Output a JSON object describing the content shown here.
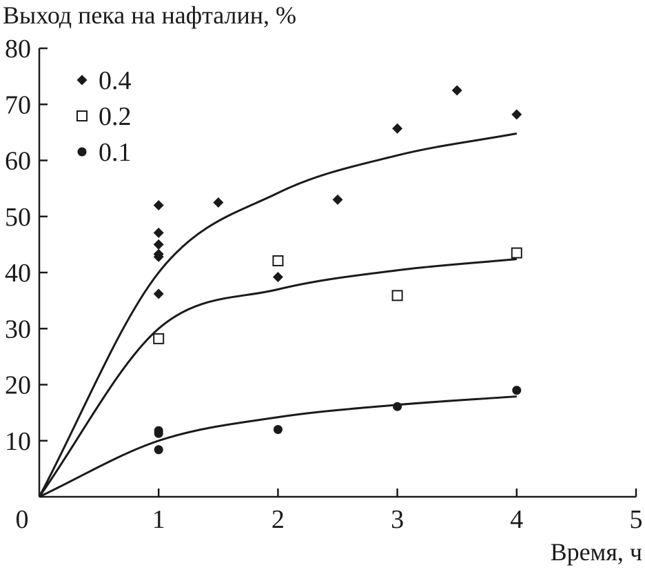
{
  "chart_data": {
    "type": "scatter",
    "ylabel": "Выход пека на нафталин, %",
    "xlabel": "Время, ч",
    "xlim": [
      0,
      5
    ],
    "ylim": [
      0,
      80
    ],
    "x_ticks": [
      "0",
      "1",
      "2",
      "3",
      "4",
      "5"
    ],
    "y_ticks": [
      "10",
      "20",
      "30",
      "40",
      "50",
      "60",
      "70",
      "80"
    ],
    "grid": false,
    "legend_position": "top-left",
    "colors": {
      "ink": "#1a1a1a",
      "background": "#ffffff"
    },
    "series": [
      {
        "name": "0.4",
        "marker": "filled-diamond",
        "points": [
          [
            1,
            52
          ],
          [
            1,
            47.1
          ],
          [
            1,
            45
          ],
          [
            1,
            43.3
          ],
          [
            1,
            42.8
          ],
          [
            1,
            36.2
          ],
          [
            1.5,
            52.5
          ],
          [
            2,
            39.2
          ],
          [
            2.5,
            53
          ],
          [
            3,
            65.7
          ],
          [
            3.5,
            72.5
          ],
          [
            4,
            68.2
          ]
        ],
        "fit_curve": {
          "x": [
            0,
            1,
            2,
            3,
            4
          ],
          "y": [
            0,
            40,
            54.2,
            60.9,
            64.8
          ]
        }
      },
      {
        "name": "0.2",
        "marker": "open-square",
        "points": [
          [
            1,
            28.2
          ],
          [
            2,
            42.1
          ],
          [
            3,
            35.9
          ],
          [
            4,
            43.5
          ]
        ],
        "fit_curve": {
          "x": [
            0,
            1,
            2,
            3,
            4
          ],
          "y": [
            0,
            30,
            37,
            40.4,
            42.4
          ]
        }
      },
      {
        "name": "0.1",
        "marker": "filled-circle",
        "points": [
          [
            1,
            11.8
          ],
          [
            1,
            11.3
          ],
          [
            1,
            8.4
          ],
          [
            2,
            12
          ],
          [
            3,
            16.1
          ],
          [
            4,
            19
          ]
        ],
        "fit_curve": {
          "x": [
            0,
            1,
            2,
            3,
            4
          ],
          "y": [
            0,
            10,
            14.2,
            16.4,
            17.9
          ]
        }
      }
    ]
  }
}
